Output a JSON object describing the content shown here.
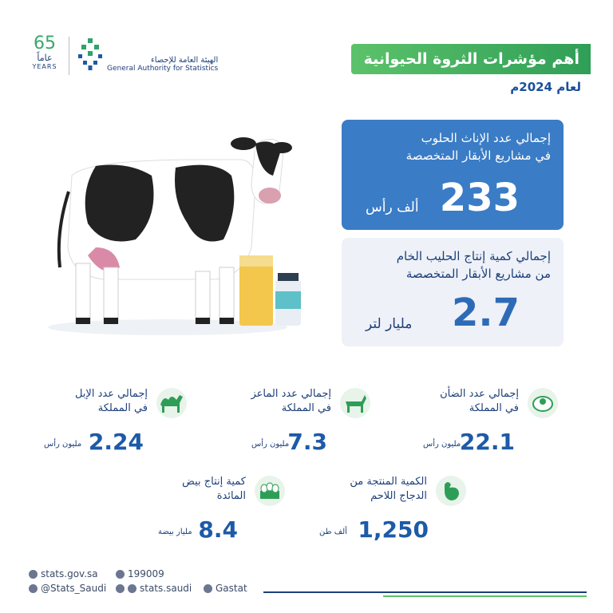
{
  "logo": {
    "years_number": "65",
    "years_ar": "عاماً",
    "years_en": "YEARS",
    "name_ar": "الهيئة العامة للإحصاء",
    "name_en": "General Authority for Statistics"
  },
  "header": {
    "title": "أهم مؤشرات الثروة الحيوانية",
    "subtitle": "لعام 2024م"
  },
  "cards": [
    {
      "lines": [
        "إجمالي عدد الإناث الحلوب",
        "في مشاريع الأبقار المتخصصة"
      ],
      "value": "233",
      "unit": "ألف رأس"
    },
    {
      "lines": [
        "إجمالي كمية إنتاج الحليب الخام",
        "من مشاريع الأبقار المتخصصة"
      ],
      "value": "2.7",
      "unit": "مليار لتر"
    }
  ],
  "stats": [
    {
      "lines": [
        "إجمالي عدد الضأن",
        "في المملكة"
      ],
      "value": "22.1",
      "unit": "مليون رأس"
    },
    {
      "lines": [
        "إجمالي عدد الماعز",
        "في المملكة"
      ],
      "value": "7.3",
      "unit": "مليون رأس"
    },
    {
      "lines": [
        "إجمالي عدد الإبل",
        "في المملكة"
      ],
      "value": "2.24",
      "unit": "مليون رأس"
    },
    {
      "lines": [
        "الكمية المنتجة من",
        "الدجاج اللاحم"
      ],
      "value": "1,250",
      "unit": "ألف طن"
    },
    {
      "lines": [
        "كمية إنتاج بيض",
        "المائدة"
      ],
      "value": "8.4",
      "unit": "مليار بيضة"
    }
  ],
  "footer": {
    "website": "stats.gov.sa",
    "phone": "199009",
    "twitter": "@Stats_Saudi",
    "social": "stats.saudi",
    "linkedin": "Gastat"
  }
}
